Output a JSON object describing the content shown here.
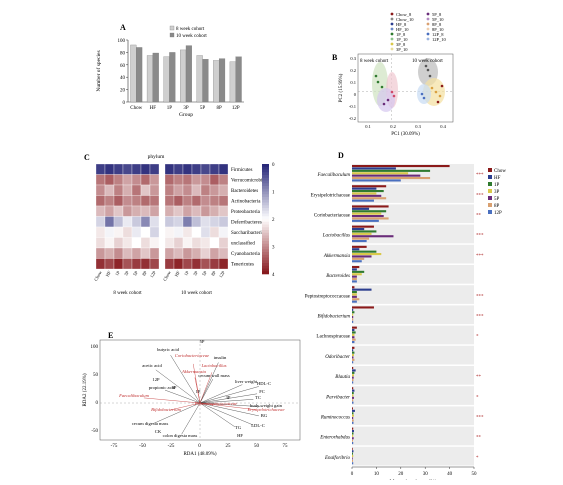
{
  "panels": {
    "a": {
      "label": "A",
      "legend": [
        "8 week cohort",
        "10 week cohort"
      ],
      "ylabel": "Number of species",
      "xlabel": "Group",
      "yticks": [
        "0",
        "20",
        "40",
        "60",
        "80",
        "100"
      ]
    },
    "b": {
      "label": "B",
      "cohort8": "8 week cohort",
      "cohort10": "10 week cohort",
      "xlabel": "PC1 (30.09%)",
      "ylabel": "PC2 (15.99%)",
      "xticks": [
        "0.1",
        "0.2",
        "0.3",
        "0.4"
      ],
      "yticks": [
        "0.3",
        "0.2",
        "0.1",
        "0",
        "-0.1",
        "-0.2"
      ],
      "legend_col1": [
        "Chow_8",
        "Chow_10",
        "HF_8",
        "HF_10",
        "1P_8",
        "1P_10",
        "3P_8",
        "3P_10"
      ],
      "legend_col2": [
        "5P_8",
        "5P_10",
        "8P_8",
        "8P_10",
        "12P_8",
        "12P_10"
      ]
    },
    "c": {
      "label": "C",
      "title": "phylum",
      "rows": [
        "Firmicutes",
        "Verrucomicrobia",
        "Bacteroidetes",
        "Actinobacteria",
        "Proteobacteria",
        "Deferribacteres",
        "Saccharibacteria",
        "unclassified",
        "Cyanobacteria",
        "Tenericutes"
      ],
      "cols8": [
        "Chow",
        "HF",
        "1P",
        "3P",
        "5P",
        "8P",
        "12P"
      ],
      "cols10": [
        "Chow",
        "HF",
        "1P",
        "3P",
        "5P",
        "8P",
        "12P"
      ],
      "cohort8": "8 week cohort",
      "cohort10": "10 week cohort",
      "scale_labels": [
        "0",
        "1",
        "2",
        "3",
        "4"
      ],
      "matrix": [
        [
          0.2,
          0.1,
          0.2,
          0.3,
          0.2,
          0.1,
          0.2,
          0.1,
          0.2,
          0.1,
          0.2,
          0.3,
          0.2,
          0.1
        ],
        [
          3.2,
          3.4,
          3.1,
          2.8,
          3.0,
          3.3,
          2.9,
          3.3,
          3.1,
          3.2,
          2.9,
          3.0,
          3.4,
          3.1
        ],
        [
          3.0,
          2.6,
          3.1,
          2.7,
          3.2,
          2.5,
          2.9,
          3.1,
          2.8,
          3.0,
          2.6,
          3.1,
          2.9,
          2.7
        ],
        [
          3.3,
          3.1,
          3.4,
          3.0,
          3.1,
          3.3,
          3.2,
          3.2,
          3.4,
          3.1,
          3.3,
          3.0,
          3.1,
          3.2
        ],
        [
          2.6,
          2.8,
          2.5,
          2.9,
          2.7,
          2.6,
          2.8,
          2.7,
          2.5,
          2.8,
          2.6,
          2.9,
          2.7,
          2.5
        ],
        [
          1.6,
          0.7,
          1.4,
          1.8,
          1.5,
          0.9,
          1.7,
          1.5,
          1.6,
          0.8,
          1.4,
          1.7,
          1.6,
          1.5
        ],
        [
          2.2,
          1.9,
          2.1,
          2.3,
          1.8,
          2.0,
          1.6,
          2.1,
          1.9,
          2.2,
          2.0,
          1.7,
          2.3,
          1.9
        ],
        [
          2.3,
          2.1,
          2.4,
          2.2,
          2.0,
          2.3,
          2.1,
          2.2,
          2.4,
          2.1,
          2.3,
          2.2,
          2.0,
          2.4
        ],
        [
          2.9,
          2.7,
          3.0,
          2.6,
          2.8,
          2.5,
          2.9,
          2.8,
          2.6,
          2.9,
          2.7,
          2.4,
          2.8,
          2.6
        ],
        [
          3.8,
          3.6,
          3.9,
          3.5,
          3.7,
          3.8,
          3.6,
          3.7,
          3.9,
          3.6,
          3.8,
          3.5,
          3.7,
          3.9
        ]
      ]
    },
    "d": {
      "label": "D",
      "legend": [
        "Chow",
        "HF",
        "1P",
        "3P",
        "5P",
        "8P",
        "12P"
      ],
      "colors": [
        "#8b1a1a",
        "#2c3e8f",
        "#2f7a2f",
        "#d9c84a",
        "#6a2c7a",
        "#d9a070",
        "#4a6fbf"
      ],
      "taxa": [
        "Faecalibaculum",
        "Erysipelotrichaceae",
        "Coriobacteriaceae",
        "Lactobacillus",
        "Akkermansia",
        "Bacteroides",
        "Peptostreptococcaceae",
        "Bifidobacterium",
        "Lachnospiraceae",
        "Odoribacter",
        "Blautia",
        "Parvibacter",
        "Ruminococcus",
        "Enterorhabdus",
        "Enalforibrio"
      ],
      "italic": [
        true,
        false,
        false,
        true,
        true,
        true,
        false,
        true,
        false,
        true,
        true,
        true,
        true,
        true,
        true
      ],
      "sig": [
        "***",
        "***",
        "**",
        "***",
        "***",
        "",
        "***",
        "***",
        "*",
        "",
        "**",
        "*",
        "***",
        "**",
        "*"
      ],
      "xlabel": "Mean abundance (%)",
      "xticks": [
        "0",
        "10",
        "20",
        "30",
        "40",
        "50"
      ],
      "values": [
        [
          40,
          18,
          32,
          23,
          28,
          32,
          20
        ],
        [
          14,
          10,
          13,
          10,
          12,
          14,
          9
        ],
        [
          15,
          7,
          14,
          12,
          13,
          15,
          11
        ],
        [
          9,
          5,
          10,
          8,
          17,
          7,
          6
        ],
        [
          6,
          3,
          10,
          12,
          8,
          5,
          4
        ],
        [
          3,
          2,
          5,
          4,
          2,
          2,
          2
        ],
        [
          1,
          8,
          2,
          2,
          2,
          3,
          2
        ],
        [
          9,
          0.5,
          1,
          0.5,
          0.5,
          0.5,
          0.5
        ],
        [
          2,
          1,
          1.5,
          1,
          1,
          1.5,
          1
        ],
        [
          1,
          0.5,
          1,
          0.8,
          0.6,
          1,
          0.5
        ],
        [
          0.5,
          1.5,
          1,
          0.8,
          0.7,
          0.6,
          0.5
        ],
        [
          0.5,
          1,
          0.7,
          0.6,
          0.8,
          0.5,
          0.6
        ],
        [
          0.4,
          1.2,
          0.6,
          0.8,
          0.5,
          0.7,
          0.6
        ],
        [
          0.5,
          0.8,
          0.6,
          0.5,
          0.7,
          0.4,
          0.5
        ],
        [
          0.3,
          0.6,
          0.4,
          0.5,
          0.3,
          0.4,
          0.5
        ]
      ]
    },
    "e": {
      "label": "E",
      "xlabel": "RDA1 (48.09%)",
      "ylabel": "RDA2 (22.19%)",
      "xticks": [
        "-75",
        "-50",
        "-25",
        "0",
        "25",
        "50",
        "75"
      ],
      "yticks": [
        "100",
        "50",
        "0",
        "-50"
      ],
      "env_labels": [
        "butyric acid",
        "acetic acid",
        "12P",
        "propionic acid",
        "8P",
        "cecum digesta mass",
        "CK",
        "colon digesta mass",
        "insulin",
        "cecum wall mass",
        "liver weight",
        "HDL-C",
        "FC",
        "TC",
        "body weight gain",
        "BG",
        "LDL-C",
        "TG",
        "HF",
        "1P",
        "3P",
        "5P"
      ],
      "taxa_labels": [
        "Coriobacteriaceae",
        "Lactobacillus",
        "Akkermansia",
        "Faecalibaculum",
        "Bifidobacterium",
        "Peptostreptococcaceae",
        "Erysipelotrichaceae"
      ]
    }
  },
  "chart_data": [
    {
      "type": "bar",
      "title": "",
      "categories": [
        "Chow",
        "HF",
        "1P",
        "3P",
        "5P",
        "8P",
        "12P"
      ],
      "series": [
        {
          "name": "8 week cohort",
          "values": [
            92,
            75,
            73,
            84,
            75,
            67,
            65
          ]
        },
        {
          "name": "10 week cohort",
          "values": [
            88,
            79,
            80,
            91,
            69,
            70,
            73
          ]
        }
      ],
      "xlabel": "Group",
      "ylabel": "Number of species",
      "ylim": [
        0,
        100
      ]
    },
    {
      "type": "bar",
      "title": "",
      "xlabel": "Mean abundance (%)",
      "xlim": [
        0,
        50
      ]
    }
  ]
}
